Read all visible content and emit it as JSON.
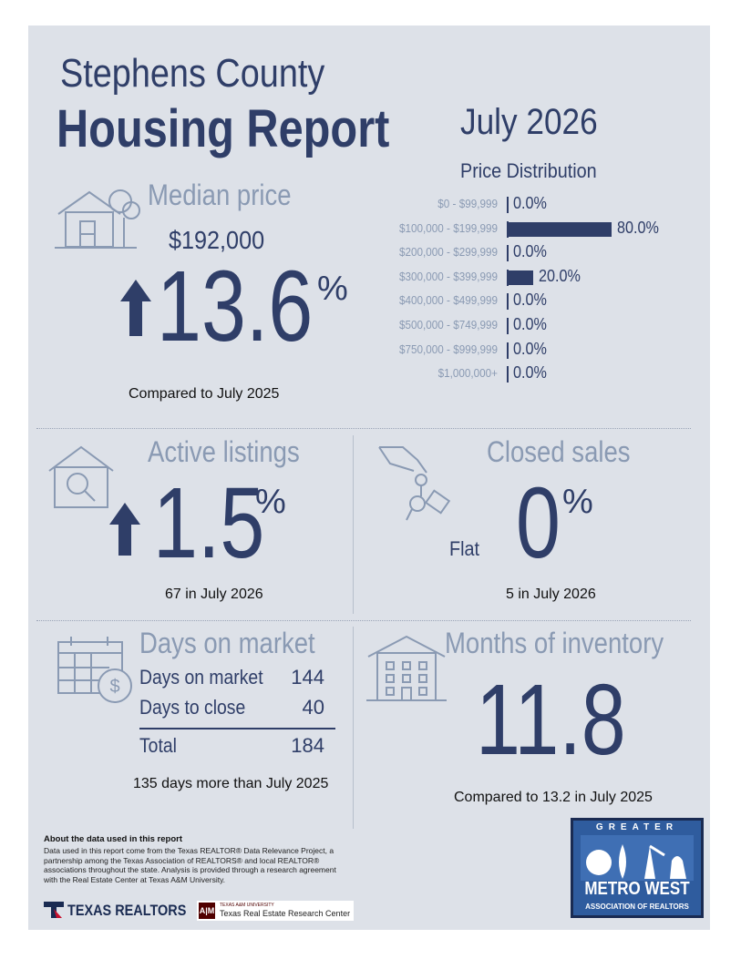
{
  "header": {
    "county": "Stephens County",
    "title": "Housing Report",
    "month": "July 2026",
    "distribution_title": "Price Distribution"
  },
  "median": {
    "title": "Median price",
    "value": "$192,000",
    "change": "13.6",
    "percent_sign": "%",
    "comparison": "Compared to July 2025",
    "direction": "up"
  },
  "chart_data": {
    "type": "bar",
    "title": "Price Distribution",
    "categories": [
      "$0 - $99,999",
      "$100,000 - $199,999",
      "$200,000 - $299,999",
      "$300,000 - $399,999",
      "$400,000 - $499,999",
      "$500,000 - $749,999",
      "$750,000 - $999,999",
      "$1,000,000+"
    ],
    "values": [
      0.0,
      80.0,
      0.0,
      20.0,
      0.0,
      0.0,
      0.0,
      0.0
    ],
    "value_labels": [
      "0.0%",
      "80.0%",
      "0.0%",
      "20.0%",
      "0.0%",
      "0.0%",
      "0.0%",
      "0.0%"
    ],
    "orientation": "horizontal",
    "xlim": [
      0,
      100
    ],
    "grid": false
  },
  "active": {
    "title": "Active listings",
    "change": "1.5",
    "percent_sign": "%",
    "caption": "67 in July 2026",
    "direction": "up"
  },
  "closed": {
    "title": "Closed sales",
    "change": "0",
    "percent_sign": "%",
    "flat_label": "Flat",
    "caption": "5 in July 2026"
  },
  "dom": {
    "title": "Days on market",
    "rows": [
      {
        "label": "Days on market",
        "value": "144"
      },
      {
        "label": "Days to close",
        "value": "40"
      }
    ],
    "total_label": "Total",
    "total_value": "184",
    "caption": "135 days more than July 2025"
  },
  "inventory": {
    "title": "Months of inventory",
    "value": "11.8",
    "caption": "Compared to 13.2 in July 2025"
  },
  "footer": {
    "about_title": "About the data used in this report",
    "about_text": "Data used in this report come from the Texas REALTOR® Data Relevance Project, a partnership among the Texas Association of REALTORS® and local REALTOR® associations throughout the state. Analysis is provided through a research agreement with the Real Estate Center at Texas A&M University.",
    "tr_logo_text": "TEXAS REALTORS",
    "tamu_small": "TEXAS A&M UNIVERSITY",
    "tamu_center": "Texas Real Estate Research Center",
    "badge_greater": "GREATER",
    "badge_main": "METRO WEST",
    "badge_sub": "ASSOCIATION OF REALTORS"
  },
  "colors": {
    "navy": "#2f3e68",
    "steel": "#8a9ab3",
    "panel": "#dde1e8"
  }
}
